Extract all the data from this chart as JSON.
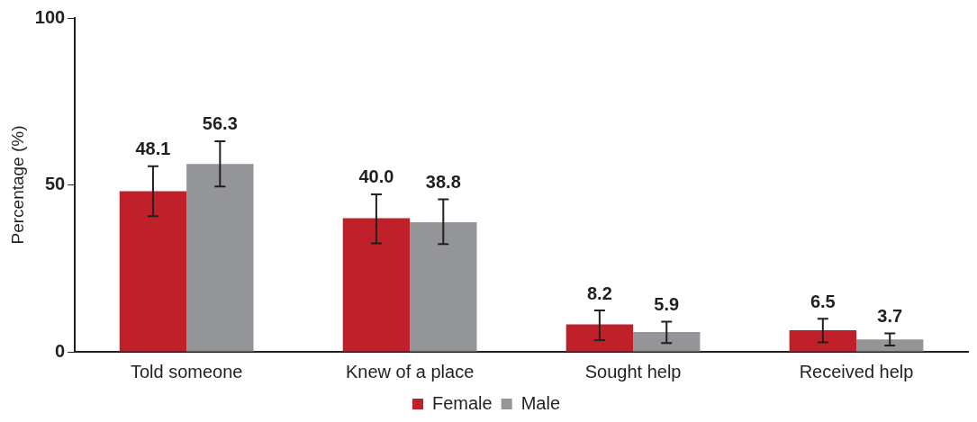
{
  "chart_data": {
    "type": "bar",
    "ylabel": "Percentage (%)",
    "categories": [
      "Told someone",
      "Knew of a place",
      "Sought help",
      "Received help"
    ],
    "series": [
      {
        "name": "Female",
        "color": "#c0202a",
        "values": [
          48.1,
          40.0,
          8.2,
          6.5
        ],
        "value_labels": [
          "48.1",
          "40.0",
          "8.2",
          "6.5"
        ],
        "errors": [
          [
            40.6,
            55.6
          ],
          [
            32.5,
            47.2
          ],
          [
            3.5,
            12.4
          ],
          [
            2.8,
            9.9
          ]
        ]
      },
      {
        "name": "Male",
        "color": "#939598",
        "values": [
          56.3,
          38.8,
          5.9,
          3.7
        ],
        "value_labels": [
          "56.3",
          "38.8",
          "5.9",
          "3.7"
        ],
        "errors": [
          [
            49.5,
            63.1
          ],
          [
            32.3,
            45.7
          ],
          [
            2.6,
            9.0
          ],
          [
            1.9,
            5.5
          ]
        ]
      }
    ],
    "ylim": [
      0,
      100
    ],
    "yticks": [
      0,
      50,
      100
    ],
    "grid": false,
    "legend": "bottom"
  }
}
